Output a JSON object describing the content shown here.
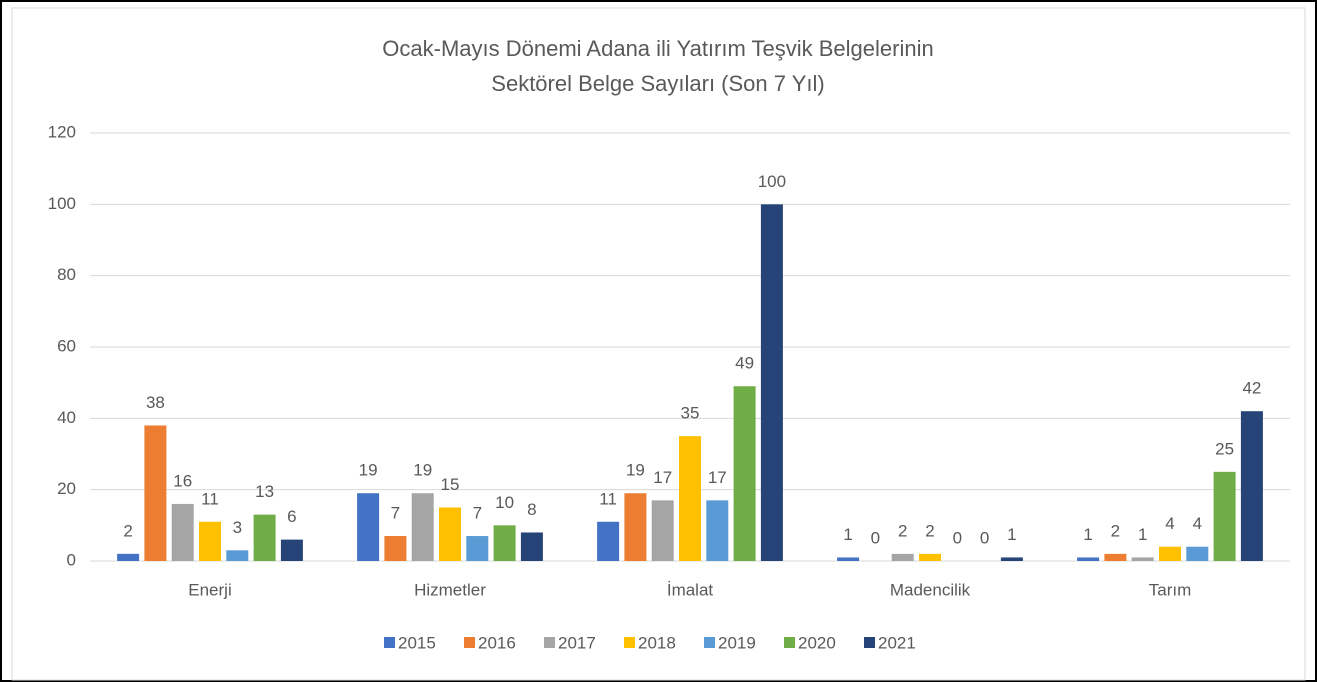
{
  "chart_data": {
    "type": "bar",
    "title": [
      "Ocak-Mayıs Dönemi Adana ili Yatırım Teşvik Belgelerinin",
      "Sektörel Belge Sayıları (Son 7 Yıl)"
    ],
    "categories": [
      "Enerji",
      "Hizmetler",
      "İmalat",
      "Madencilik",
      "Tarım"
    ],
    "series": [
      {
        "name": "2015",
        "color": "#4472c4",
        "values": [
          2,
          19,
          11,
          1,
          1
        ]
      },
      {
        "name": "2016",
        "color": "#ed7d31",
        "values": [
          38,
          7,
          19,
          0,
          2
        ]
      },
      {
        "name": "2017",
        "color": "#a5a5a5",
        "values": [
          16,
          19,
          17,
          2,
          1
        ]
      },
      {
        "name": "2018",
        "color": "#ffc000",
        "values": [
          11,
          15,
          35,
          2,
          4
        ]
      },
      {
        "name": "2019",
        "color": "#5b9bd5",
        "values": [
          3,
          7,
          17,
          0,
          4
        ]
      },
      {
        "name": "2020",
        "color": "#70ad47",
        "values": [
          13,
          10,
          49,
          0,
          25
        ]
      },
      {
        "name": "2021",
        "color": "#264478",
        "values": [
          6,
          8,
          100,
          1,
          42
        ]
      }
    ],
    "ylim": [
      0,
      120
    ],
    "yticks": [
      0,
      20,
      40,
      60,
      80,
      100,
      120
    ],
    "grid": true,
    "legend": "bottom"
  }
}
